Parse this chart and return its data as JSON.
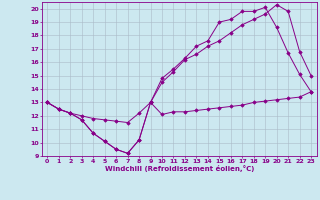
{
  "xlabel": "Windchill (Refroidissement éolien,°C)",
  "background_color": "#cce8f0",
  "grid_color": "#aabbc8",
  "line_color": "#880088",
  "xlim": [
    -0.5,
    23.5
  ],
  "ylim": [
    9,
    20.5
  ],
  "xticks": [
    0,
    1,
    2,
    3,
    4,
    5,
    6,
    7,
    8,
    9,
    10,
    11,
    12,
    13,
    14,
    15,
    16,
    17,
    18,
    19,
    20,
    21,
    22,
    23
  ],
  "yticks": [
    9,
    10,
    11,
    12,
    13,
    14,
    15,
    16,
    17,
    18,
    19,
    20
  ],
  "line1_x": [
    0,
    1,
    2,
    3,
    4,
    5,
    6,
    7,
    8,
    9,
    10,
    11,
    12,
    13,
    14,
    15,
    16,
    17,
    18,
    19,
    20,
    21,
    22,
    23
  ],
  "line1_y": [
    13,
    12.5,
    12.2,
    11.7,
    10.7,
    10.1,
    9.5,
    9.2,
    10.2,
    13.0,
    12.1,
    12.3,
    12.3,
    12.4,
    12.5,
    12.6,
    12.7,
    12.8,
    13.0,
    13.1,
    13.2,
    13.3,
    13.4,
    13.8
  ],
  "line2_x": [
    0,
    1,
    2,
    3,
    4,
    5,
    6,
    7,
    8,
    9,
    10,
    11,
    12,
    13,
    14,
    15,
    16,
    17,
    18,
    19,
    20,
    21,
    22,
    23
  ],
  "line2_y": [
    13,
    12.5,
    12.2,
    11.7,
    10.7,
    10.1,
    9.5,
    9.2,
    10.2,
    13.0,
    14.5,
    15.3,
    16.2,
    16.6,
    17.2,
    17.6,
    18.2,
    18.8,
    19.2,
    19.6,
    20.3,
    19.8,
    16.8,
    15.0
  ],
  "line3_x": [
    0,
    1,
    2,
    3,
    4,
    5,
    6,
    7,
    8,
    9,
    10,
    11,
    12,
    13,
    14,
    15,
    16,
    17,
    18,
    19,
    20,
    21,
    22,
    23
  ],
  "line3_y": [
    13,
    12.5,
    12.2,
    12.0,
    11.8,
    11.7,
    11.6,
    11.5,
    12.2,
    13.0,
    14.8,
    15.5,
    16.3,
    17.2,
    17.6,
    19.0,
    19.2,
    19.8,
    19.8,
    20.1,
    18.6,
    16.7,
    15.1,
    13.8
  ]
}
